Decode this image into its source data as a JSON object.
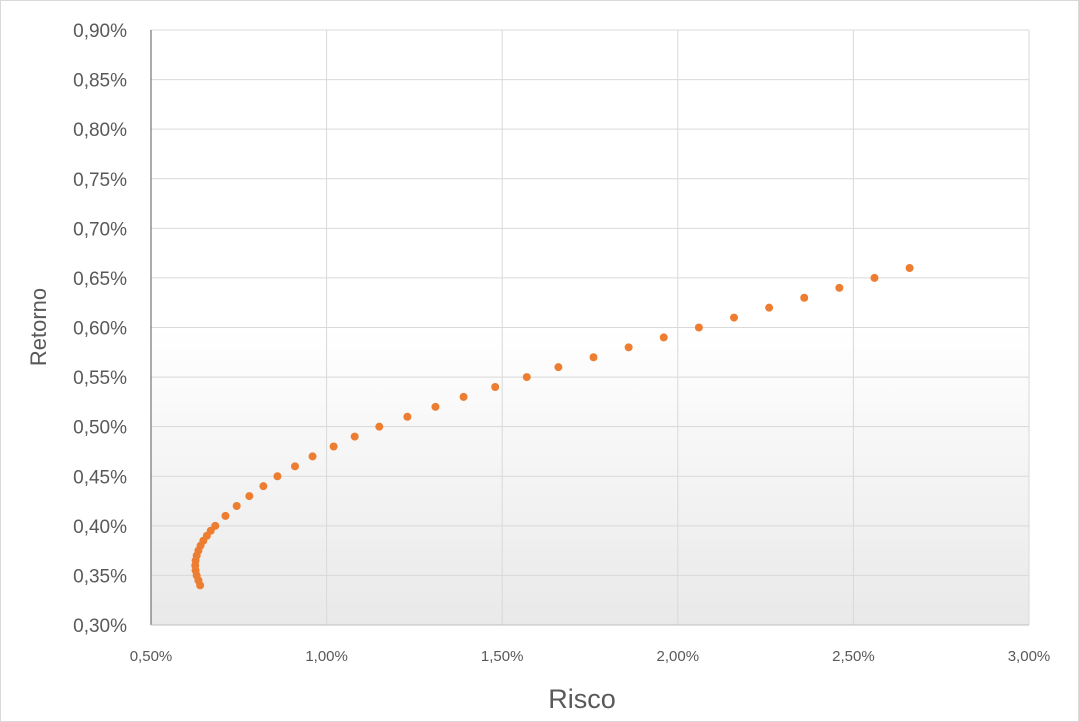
{
  "chart_data": {
    "type": "scatter",
    "title": "",
    "xlabel": "Risco",
    "ylabel": "Retorno",
    "xlim": [
      0.005,
      0.03
    ],
    "ylim": [
      0.003,
      0.009
    ],
    "x_ticks": [
      0.005,
      0.01,
      0.015,
      0.02,
      0.025,
      0.03
    ],
    "y_ticks": [
      0.003,
      0.0035,
      0.004,
      0.0045,
      0.005,
      0.0055,
      0.006,
      0.0065,
      0.007,
      0.0075,
      0.008,
      0.0085,
      0.009
    ],
    "x_tick_labels": [
      "0,50%",
      "1,00%",
      "1,50%",
      "2,00%",
      "2,50%",
      "3,00%"
    ],
    "y_tick_labels": [
      "0,30%",
      "0,35%",
      "0,40%",
      "0,45%",
      "0,50%",
      "0,55%",
      "0,60%",
      "0,65%",
      "0,70%",
      "0,75%",
      "0,80%",
      "0,85%",
      "0,90%"
    ],
    "grid": true,
    "legend": "none",
    "marker_color": "#ED7D31",
    "series": [
      {
        "x": [
          0.0064,
          0.00635,
          0.0063,
          0.00627,
          0.00626,
          0.00627,
          0.0063,
          0.00635,
          0.00641,
          0.00649,
          0.00659,
          0.0067,
          0.00683,
          0.00712,
          0.00744,
          0.0078,
          0.0082,
          0.0086,
          0.0091,
          0.0096,
          0.0102,
          0.0108,
          0.0115,
          0.0123,
          0.0131,
          0.0139,
          0.0148,
          0.0157,
          0.0166,
          0.0176,
          0.0186,
          0.0196,
          0.0206,
          0.0216,
          0.0226,
          0.0236,
          0.0246,
          0.0256,
          0.0266
        ],
        "y": [
          0.0034,
          0.00345,
          0.0035,
          0.00355,
          0.0036,
          0.00365,
          0.0037,
          0.00375,
          0.0038,
          0.00385,
          0.0039,
          0.00395,
          0.004,
          0.0041,
          0.0042,
          0.0043,
          0.0044,
          0.0045,
          0.0046,
          0.0047,
          0.0048,
          0.0049,
          0.005,
          0.0051,
          0.0052,
          0.0053,
          0.0054,
          0.0055,
          0.0056,
          0.0057,
          0.0058,
          0.0059,
          0.006,
          0.0061,
          0.0062,
          0.0063,
          0.0064,
          0.0065,
          0.0066
        ]
      }
    ]
  }
}
